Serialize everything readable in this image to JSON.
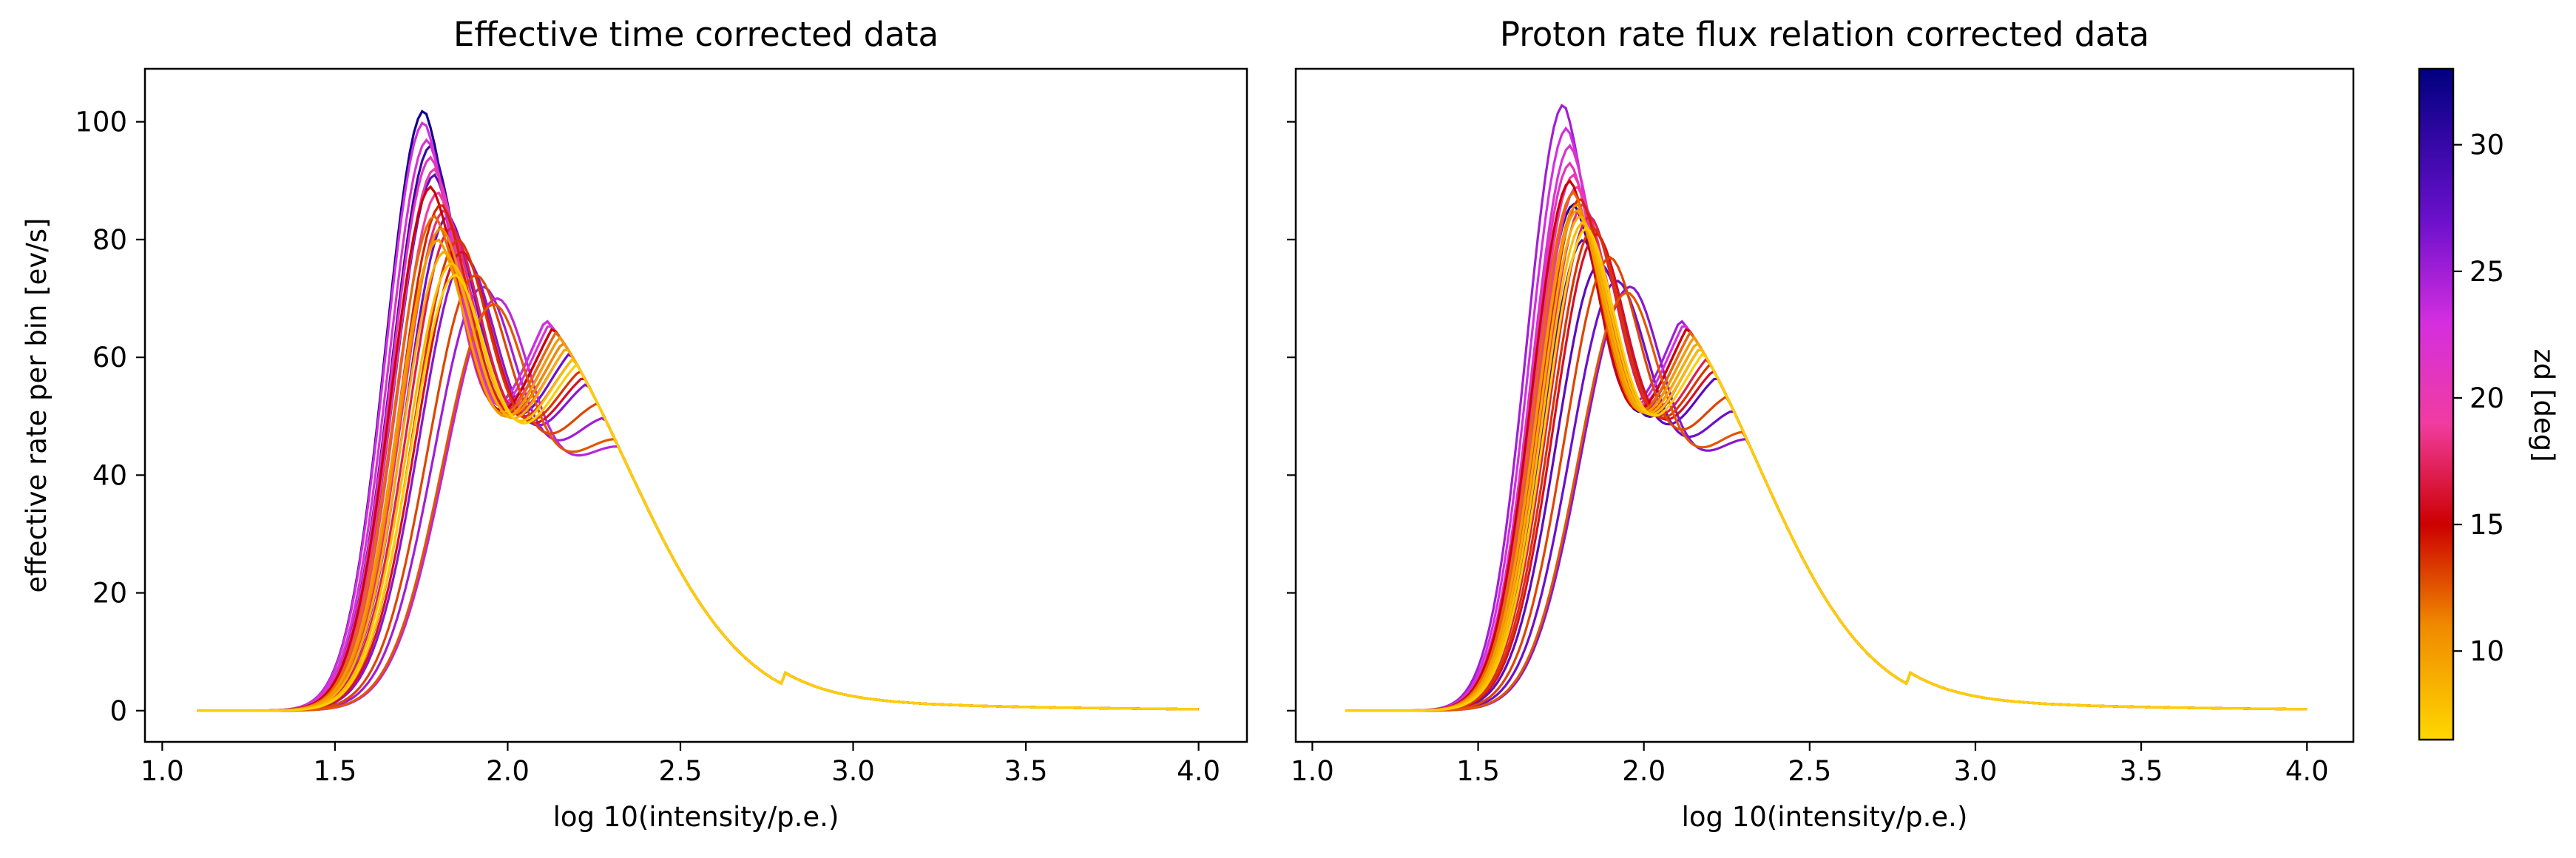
{
  "figure": {
    "colorbar": {
      "label": "zd [deg]",
      "range": [
        6.5,
        33
      ],
      "ticks": [
        10,
        15,
        20,
        25,
        30
      ],
      "colormap_stops": [
        {
          "v": 6.5,
          "color": "#ffd700"
        },
        {
          "v": 11,
          "color": "#f08a00"
        },
        {
          "v": 15,
          "color": "#cc0000"
        },
        {
          "v": 19,
          "color": "#f03ca0"
        },
        {
          "v": 23,
          "color": "#d42ee0"
        },
        {
          "v": 27,
          "color": "#6c10cc"
        },
        {
          "v": 33,
          "color": "#000080"
        }
      ]
    }
  },
  "chart_data": [
    {
      "type": "line",
      "title": "Effective time corrected data",
      "xlabel": "log 10(intensity/p.e.)",
      "ylabel": "effective rate per bin [ev/s]",
      "xlim": [
        0.95,
        4.14
      ],
      "ylim": [
        -5.3,
        109
      ],
      "xticks": [
        1.0,
        1.5,
        2.0,
        2.5,
        3.0,
        3.5,
        4.0
      ],
      "yticks": [
        0,
        20,
        40,
        60,
        80,
        100
      ],
      "x_range": [
        1.1,
        4.0
      ],
      "series": [
        {
          "zd": 32,
          "peak_x": 1.76,
          "peak_y": 102
        },
        {
          "zd": 30,
          "peak_x": 1.78,
          "peak_y": 96
        },
        {
          "zd": 28,
          "peak_x": 1.79,
          "peak_y": 91
        },
        {
          "zd": 27,
          "peak_x": 1.83,
          "peak_y": 84
        },
        {
          "zd": 26,
          "peak_x": 1.88,
          "peak_y": 77
        },
        {
          "zd": 25,
          "peak_x": 1.93,
          "peak_y": 72
        },
        {
          "zd": 24,
          "peak_x": 1.97,
          "peak_y": 70
        },
        {
          "zd": 23,
          "peak_x": 1.76,
          "peak_y": 100
        },
        {
          "zd": 22,
          "peak_x": 1.77,
          "peak_y": 97
        },
        {
          "zd": 21,
          "peak_x": 1.78,
          "peak_y": 94
        },
        {
          "zd": 20,
          "peak_x": 1.79,
          "peak_y": 92
        },
        {
          "zd": 19,
          "peak_x": 1.8,
          "peak_y": 88
        },
        {
          "zd": 18,
          "peak_x": 1.82,
          "peak_y": 85
        },
        {
          "zd": 17,
          "peak_x": 1.84,
          "peak_y": 82
        },
        {
          "zd": 16,
          "peak_x": 1.87,
          "peak_y": 78
        },
        {
          "zd": 15,
          "peak_x": 1.78,
          "peak_y": 89
        },
        {
          "zd": 14,
          "peak_x": 1.81,
          "peak_y": 86
        },
        {
          "zd": 13.5,
          "peak_x": 1.86,
          "peak_y": 80
        },
        {
          "zd": 13,
          "peak_x": 1.91,
          "peak_y": 74
        },
        {
          "zd": 12.5,
          "peak_x": 1.96,
          "peak_y": 69
        },
        {
          "zd": 12,
          "peak_x": 1.79,
          "peak_y": 84
        },
        {
          "zd": 11,
          "peak_x": 1.81,
          "peak_y": 82
        },
        {
          "zd": 10,
          "peak_x": 1.8,
          "peak_y": 80
        },
        {
          "zd": 9,
          "peak_x": 1.82,
          "peak_y": 78
        },
        {
          "zd": 8,
          "peak_x": 1.84,
          "peak_y": 76
        },
        {
          "zd": 7,
          "peak_x": 1.85,
          "peak_y": 74
        }
      ]
    },
    {
      "type": "line",
      "title": "Proton rate flux relation corrected data",
      "xlabel": "log 10(intensity/p.e.)",
      "ylabel": "",
      "xlim": [
        0.95,
        4.14
      ],
      "ylim": [
        -5.3,
        109
      ],
      "xticks": [
        1.0,
        1.5,
        2.0,
        2.5,
        3.0,
        3.5,
        4.0
      ],
      "yticks": [
        0,
        20,
        40,
        60,
        80,
        100
      ],
      "x_range": [
        1.1,
        4.0
      ],
      "series": [
        {
          "zd": 31,
          "peak_x": 1.79,
          "peak_y": 86
        },
        {
          "zd": 29,
          "peak_x": 1.82,
          "peak_y": 80
        },
        {
          "zd": 28,
          "peak_x": 1.87,
          "peak_y": 76
        },
        {
          "zd": 27,
          "peak_x": 1.92,
          "peak_y": 73
        },
        {
          "zd": 26,
          "peak_x": 1.96,
          "peak_y": 72
        },
        {
          "zd": 25,
          "peak_x": 1.76,
          "peak_y": 103
        },
        {
          "zd": 23,
          "peak_x": 1.77,
          "peak_y": 99
        },
        {
          "zd": 22,
          "peak_x": 1.78,
          "peak_y": 96
        },
        {
          "zd": 21,
          "peak_x": 1.78,
          "peak_y": 93
        },
        {
          "zd": 20,
          "peak_x": 1.79,
          "peak_y": 91
        },
        {
          "zd": 19,
          "peak_x": 1.8,
          "peak_y": 89
        },
        {
          "zd": 18,
          "peak_x": 1.82,
          "peak_y": 86
        },
        {
          "zd": 17,
          "peak_x": 1.84,
          "peak_y": 84
        },
        {
          "zd": 16,
          "peak_x": 1.86,
          "peak_y": 81
        },
        {
          "zd": 15,
          "peak_x": 1.78,
          "peak_y": 90
        },
        {
          "zd": 14,
          "peak_x": 1.81,
          "peak_y": 87
        },
        {
          "zd": 13.5,
          "peak_x": 1.85,
          "peak_y": 82
        },
        {
          "zd": 13,
          "peak_x": 1.9,
          "peak_y": 77
        },
        {
          "zd": 12.5,
          "peak_x": 1.95,
          "peak_y": 71
        },
        {
          "zd": 12,
          "peak_x": 1.79,
          "peak_y": 88
        },
        {
          "zd": 11,
          "peak_x": 1.8,
          "peak_y": 86
        },
        {
          "zd": 10,
          "peak_x": 1.8,
          "peak_y": 85
        },
        {
          "zd": 9,
          "peak_x": 1.81,
          "peak_y": 84
        },
        {
          "zd": 8,
          "peak_x": 1.82,
          "peak_y": 83
        },
        {
          "zd": 7,
          "peak_x": 1.83,
          "peak_y": 82
        }
      ]
    }
  ]
}
